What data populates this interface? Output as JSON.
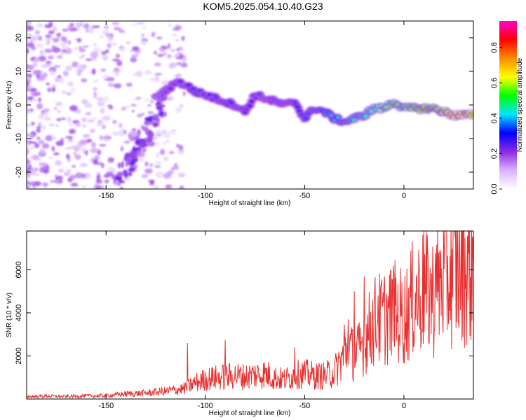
{
  "title": "KOM5.2025.054.10.40.G23",
  "chart_data": [
    {
      "type": "heatmap",
      "xlabel": "Height of straight line (km)",
      "ylabel": "Frequency (Hz)",
      "xlim": [
        -190,
        35
      ],
      "ylim": [
        -25,
        25
      ],
      "x_ticks": [
        -150,
        -100,
        -50,
        0
      ],
      "y_ticks": [
        -20,
        -10,
        0,
        10,
        20
      ],
      "x_tick_labels": [
        "-150",
        "-100",
        "-50",
        "0"
      ],
      "y_tick_labels": [
        "-20",
        "-10",
        "0",
        "10",
        "20"
      ],
      "colorbar": {
        "label": "Normalized spectral amplitude",
        "range": [
          0,
          0.95
        ],
        "ticks": [
          0.0,
          0.2,
          0.4,
          0.6,
          0.8
        ],
        "tick_labels": [
          "0.0",
          "0.2",
          "0.4",
          "0.6",
          "0.8"
        ],
        "colormap": [
          "#ffffff",
          "#d9b3ff",
          "#8a2be2",
          "#0000ff",
          "#00e5ff",
          "#00ff00",
          "#ffff00",
          "#ff8c00",
          "#ff0000",
          "#ff00cc"
        ]
      },
      "track": {
        "x": [
          -125,
          -120,
          -115,
          -110,
          -105,
          -100,
          -95,
          -90,
          -85,
          -80,
          -75,
          -70,
          -65,
          -60,
          -55,
          -50,
          -45,
          -40,
          -35,
          -30,
          -25,
          -20,
          -15,
          -10,
          -5,
          0,
          5,
          10,
          15,
          20,
          25,
          30,
          35
        ],
        "y": [
          2,
          4,
          7,
          6,
          4,
          3,
          2,
          1,
          0,
          -2,
          3,
          2,
          1,
          0,
          1,
          -4,
          -1,
          -2,
          -4,
          -5,
          -4,
          -3,
          -1,
          -1,
          1,
          -1,
          -1,
          -1,
          -1,
          -2,
          -3,
          -3,
          -3
        ],
        "amplitude": [
          0.2,
          0.25,
          0.3,
          0.3,
          0.35,
          0.35,
          0.3,
          0.35,
          0.3,
          0.3,
          0.3,
          0.25,
          0.3,
          0.3,
          0.3,
          0.35,
          0.4,
          0.45,
          0.45,
          0.5,
          0.55,
          0.55,
          0.6,
          0.65,
          0.7,
          0.7,
          0.75,
          0.8,
          0.8,
          0.85,
          0.9,
          0.9,
          0.85
        ]
      }
    },
    {
      "type": "line",
      "xlabel": "Height of straight line (km)",
      "ylabel": "SNR (10 * v/v)",
      "xlim": [
        -190,
        35
      ],
      "ylim": [
        0,
        7800
      ],
      "x_ticks": [
        -150,
        -100,
        -50,
        0
      ],
      "y_ticks": [
        2000,
        4000,
        6000
      ],
      "x_tick_labels": [
        "-150",
        "-100",
        "-50",
        "0"
      ],
      "y_tick_labels": [
        "2000",
        "4000",
        "6000"
      ],
      "series": [
        {
          "color": "#e83030",
          "x": [
            -190,
            -180,
            -170,
            -160,
            -150,
            -140,
            -130,
            -120,
            -110,
            -105,
            -100,
            -95,
            -90,
            -85,
            -80,
            -75,
            -70,
            -65,
            -60,
            -55,
            -50,
            -45,
            -40,
            -35,
            -30,
            -28,
            -25,
            -22,
            -20,
            -15,
            -10,
            -5,
            0,
            5,
            10,
            15,
            20,
            25,
            30,
            35
          ],
          "y": [
            120,
            150,
            130,
            160,
            170,
            260,
            300,
            400,
            550,
            850,
            1000,
            1100,
            1150,
            1200,
            1150,
            1250,
            1300,
            1100,
            1000,
            1250,
            1300,
            1200,
            1200,
            1400,
            2300,
            2700,
            2200,
            2600,
            3000,
            4000,
            4200,
            4500,
            4200,
            5200,
            5500,
            5300,
            6300,
            6500,
            6700,
            6900
          ],
          "peaks_x": [
            -109,
            -90,
            -55,
            -30,
            -28,
            -25,
            -20,
            -13,
            -5,
            10,
            16
          ],
          "peaks_y": [
            2600,
            2750,
            2400,
            3450,
            3700,
            5000,
            5700,
            4800,
            5800,
            7850,
            6800
          ]
        }
      ]
    }
  ]
}
